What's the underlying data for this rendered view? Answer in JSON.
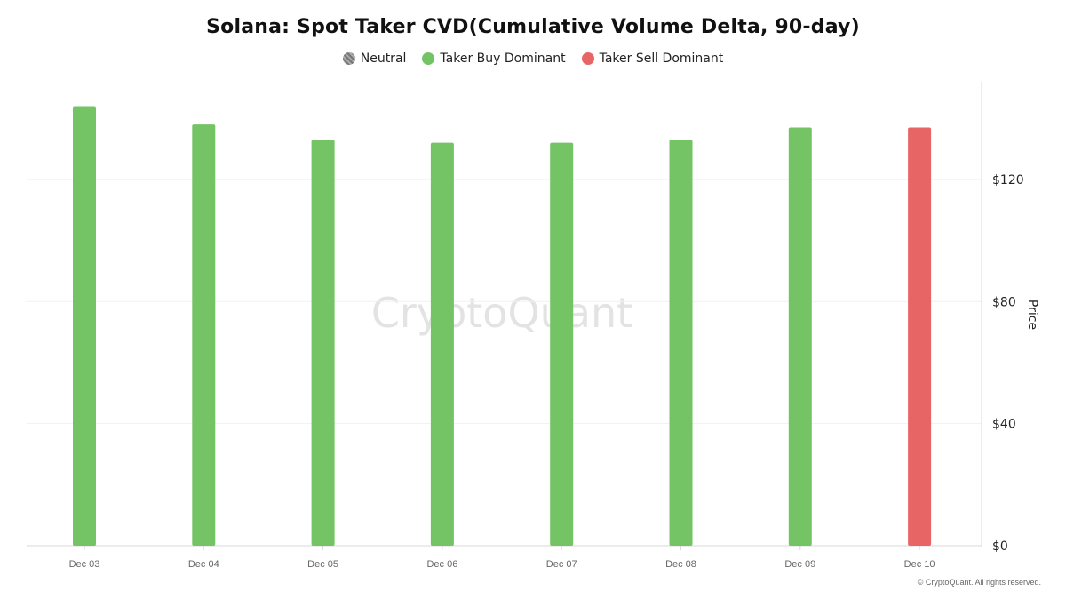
{
  "chart_data": {
    "type": "bar",
    "title": "Solana: Spot Taker CVD(Cumulative Volume Delta, 90-day)",
    "categories": [
      "Dec 03",
      "Dec 04",
      "Dec 05",
      "Dec 06",
      "Dec 07",
      "Dec 08",
      "Dec 09",
      "Dec 10"
    ],
    "values": [
      144,
      138,
      133,
      132,
      132,
      133,
      137,
      137
    ],
    "status": [
      "buy",
      "buy",
      "buy",
      "buy",
      "buy",
      "buy",
      "buy",
      "sell"
    ],
    "ylabel": "Price",
    "ylim": [
      0,
      152
    ],
    "yticks": [
      {
        "value": 0,
        "label": "$0"
      },
      {
        "value": 40,
        "label": "$40"
      },
      {
        "value": 80,
        "label": "$80"
      },
      {
        "value": 120,
        "label": "$120"
      }
    ],
    "y_axis_side": "right",
    "grid": true,
    "legend_position": "top-center",
    "legend": [
      {
        "key": "neutral",
        "label": "Neutral",
        "color": "#888888"
      },
      {
        "key": "buy",
        "label": "Taker Buy Dominant",
        "color": "#74c365"
      },
      {
        "key": "sell",
        "label": "Taker Sell Dominant",
        "color": "#e76665"
      }
    ]
  },
  "watermark": "CryptoQuant",
  "credit": "© CryptoQuant. All rights reserved."
}
